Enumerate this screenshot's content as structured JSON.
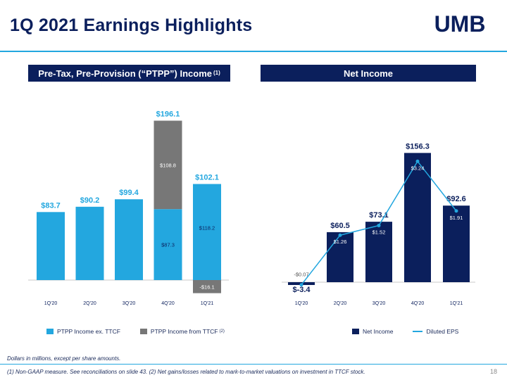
{
  "slide": {
    "title": "1Q 2021 Earnings Highlights",
    "logo_text": "UMB",
    "note": "Dollars in millions, except per share amounts.",
    "footnote": "(1) Non-GAAP measure. See reconciliations on slide 43. (2) Net gains/losses related to mark-to-market valuations on investment in TTCF stock.",
    "page_number": "18"
  },
  "colors": {
    "navy": "#0b1f5c",
    "accent": "#23a7df",
    "gray": "#777777"
  },
  "chart_data": [
    {
      "type": "bar",
      "heading": "Pre-Tax, Pre-Provision (“PTPP”) Income",
      "heading_note": "(1)",
      "stacked": true,
      "categories": [
        "1Q'20",
        "2Q'20",
        "3Q'20",
        "4Q'20",
        "1Q'21"
      ],
      "series": [
        {
          "name": "PTPP Income ex. TTCF",
          "values": [
            83.7,
            90.2,
            99.4,
            87.3,
            118.2
          ],
          "labels": [
            "",
            "",
            "",
            "$87.3",
            "$118.2"
          ]
        },
        {
          "name": "PTPP Income from TTCF",
          "name_note": "(2)",
          "values": [
            0,
            0,
            0,
            108.8,
            -16.1
          ],
          "labels": [
            "",
            "",
            "",
            "$108.8",
            "-$16.1"
          ]
        }
      ],
      "totals": [
        "$83.7",
        "$90.2",
        "$99.4",
        "$196.1",
        "$102.1"
      ],
      "total_values": [
        83.7,
        90.2,
        99.4,
        196.1,
        102.1
      ]
    },
    {
      "type": "bar",
      "heading": "Net Income",
      "categories": [
        "1Q'20",
        "2Q'20",
        "3Q'20",
        "4Q'20",
        "1Q'21"
      ],
      "series": [
        {
          "name": "Net Income",
          "values": [
            -3.4,
            60.5,
            73.1,
            156.3,
            92.6
          ],
          "labels": [
            "$-3.4",
            "$60.5",
            "$73.1",
            "$156.3",
            "$92.6"
          ]
        },
        {
          "name": "Diluted EPS",
          "type": "line",
          "values": [
            -0.07,
            1.26,
            1.52,
            3.24,
            1.91
          ],
          "labels": [
            "-$0.07",
            "$1.26",
            "$1.52",
            "$3.24",
            "$1.91"
          ]
        }
      ]
    }
  ]
}
